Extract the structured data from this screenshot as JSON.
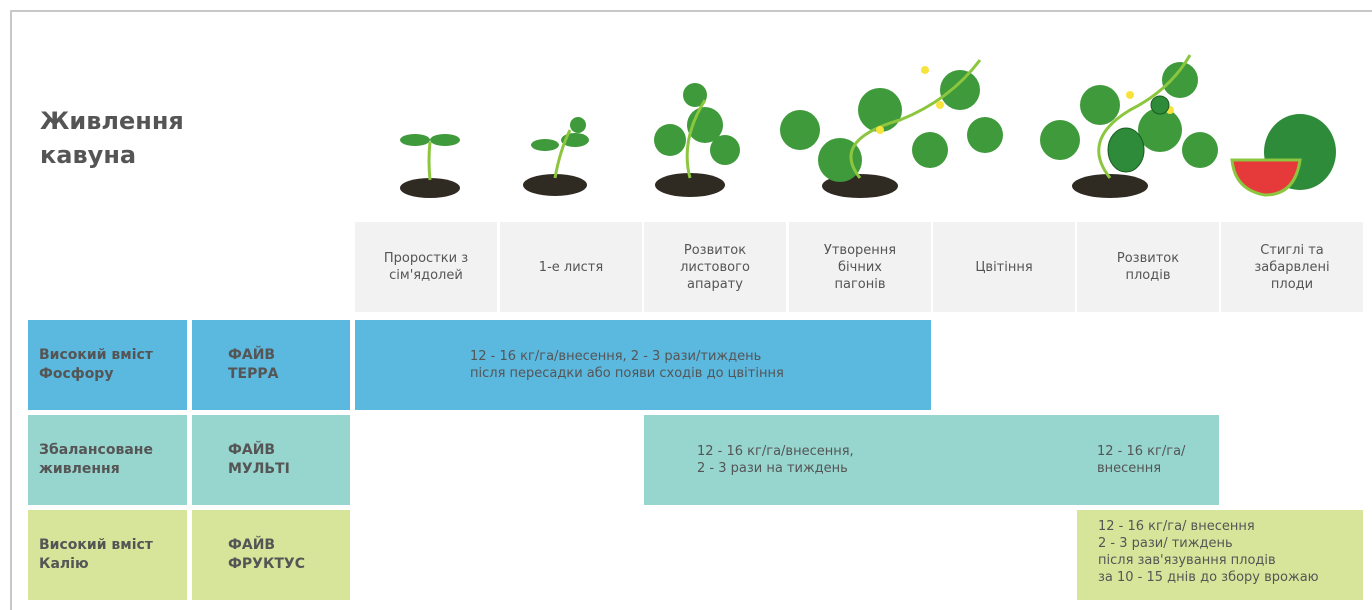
{
  "header": {
    "title": "Живлення кавуна"
  },
  "stages": [
    "Проростки з сім'ядолей",
    "1-е листя",
    "Розвиток листового апарату",
    "Утворення бічних пагонів",
    "Цвітіння",
    "Розвиток плодів",
    "Стиглі та забарвлені плоди"
  ],
  "rows": [
    {
      "nutrient": "Високий вміст Фосфору",
      "product": "ФАЙВ ТЕРРА",
      "notes": [
        [
          "12 - 16 кг/га/внесення, 2 - 3 рази/тиждень",
          "після пересадки або появи сходів до цвітіння"
        ]
      ]
    },
    {
      "nutrient": "Збалансоване живлення",
      "product": "ФАЙВ МУЛЬТІ",
      "notes": [
        [
          "12 - 16 кг/га/внесення,",
          "2 - 3 рази на тиждень"
        ],
        [
          "12 - 16 кг/га/",
          "внесення"
        ]
      ]
    },
    {
      "nutrient": "Високий вміст Калію",
      "product": "ФАЙВ ФРУКТУС",
      "notes": [
        [
          "12 - 16 кг/га/ внесення",
          "2 - 3 рази/ тиждень",
          "після зав'язування плодів",
          "за 10 - 15 днів до збору врожаю"
        ]
      ]
    }
  ]
}
